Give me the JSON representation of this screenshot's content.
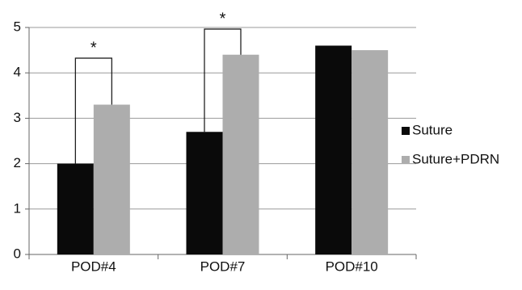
{
  "chart_data": {
    "type": "bar",
    "categories": [
      "POD#4",
      "POD#7",
      "POD#10"
    ],
    "series": [
      {
        "name": "Suture",
        "color": "#0a0a0a",
        "values": [
          2.0,
          2.7,
          4.6
        ]
      },
      {
        "name": "Suture+PDRN",
        "color": "#adadad",
        "values": [
          3.3,
          4.4,
          4.5
        ]
      }
    ],
    "ylim": [
      0,
      5
    ],
    "yticks": [
      0,
      1,
      2,
      3,
      4,
      5
    ],
    "grid": true,
    "legend": "right",
    "annotations": [
      "*",
      "*"
    ]
  }
}
